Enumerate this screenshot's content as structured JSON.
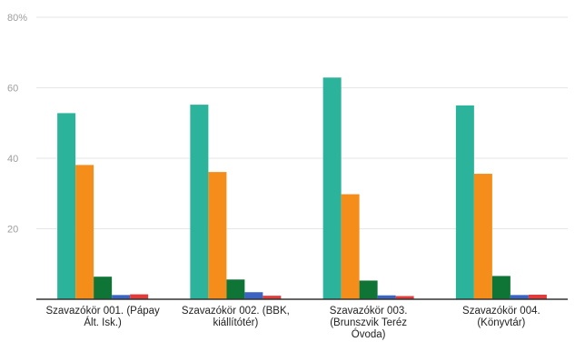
{
  "chart_data": {
    "type": "bar",
    "title": "",
    "xlabel": "",
    "ylabel": "",
    "ylim": [
      0,
      80
    ],
    "yticks": [
      "",
      "20",
      "40",
      "60",
      "80%"
    ],
    "grid": true,
    "legend": "none",
    "categories": [
      [
        "Szavazókör 001. (Pápay",
        "Ált. Isk.)"
      ],
      [
        "Szavazókör 002. (BBK,",
        "kiállítótér)"
      ],
      [
        "Szavazókör 003.",
        "(Brunszvik Teréz",
        "Óvoda)"
      ],
      [
        "Szavazókör 004.",
        "(Könyvtár)"
      ]
    ],
    "colors": [
      "#2bb39b",
      "#f58d1b",
      "#0f7536",
      "#3b64c2",
      "#e23b3b"
    ],
    "series": [
      {
        "values": [
          52.8,
          55.2,
          62.9,
          55.0
        ]
      },
      {
        "values": [
          38.1,
          36.1,
          29.8,
          35.6
        ]
      },
      {
        "values": [
          6.4,
          5.6,
          5.3,
          6.6
        ]
      },
      {
        "values": [
          1.2,
          2.0,
          1.1,
          1.2
        ]
      },
      {
        "values": [
          1.4,
          1.0,
          0.9,
          1.3
        ]
      }
    ]
  }
}
